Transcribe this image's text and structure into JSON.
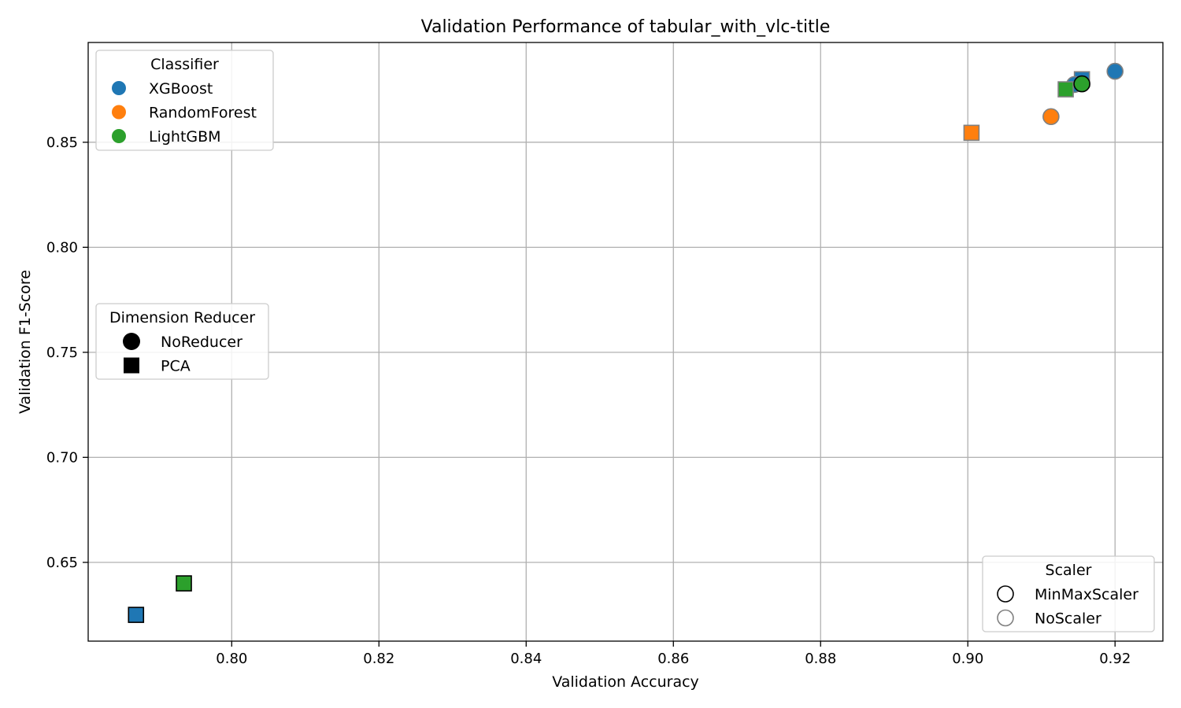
{
  "chart_data": {
    "type": "scatter",
    "title": "Validation Performance of tabular_with_vlc-title",
    "xlabel": "Validation Accuracy",
    "ylabel": "Validation F1-Score",
    "xlim": [
      0.7805,
      0.9265
    ],
    "ylim": [
      0.6125,
      0.8975
    ],
    "xticks": [
      0.8,
      0.82,
      0.84,
      0.86,
      0.88,
      0.9,
      0.92
    ],
    "yticks": [
      0.65,
      0.7,
      0.75,
      0.8,
      0.85
    ],
    "xtick_labels": [
      "0.80",
      "0.82",
      "0.84",
      "0.86",
      "0.88",
      "0.90",
      "0.92"
    ],
    "ytick_labels": [
      "0.65",
      "0.70",
      "0.75",
      "0.80",
      "0.85"
    ],
    "grid": true,
    "colors": {
      "XGBoost": "#1f77b4",
      "RandomForest": "#ff7f0e",
      "LightGBM": "#2ca02c"
    },
    "scaler_edge_colors": {
      "MinMaxScaler": "#000000",
      "NoScaler": "#808080"
    },
    "points": [
      {
        "classifier": "XGBoost",
        "reducer": "PCA",
        "scaler": "MinMaxScaler",
        "x": 0.787,
        "y": 0.625
      },
      {
        "classifier": "LightGBM",
        "reducer": "PCA",
        "scaler": "MinMaxScaler",
        "x": 0.7935,
        "y": 0.64
      },
      {
        "classifier": "RandomForest",
        "reducer": "PCA",
        "scaler": "NoScaler",
        "x": 0.9005,
        "y": 0.8545
      },
      {
        "classifier": "RandomForest",
        "reducer": "NoReducer",
        "scaler": "NoScaler",
        "x": 0.9113,
        "y": 0.8622
      },
      {
        "classifier": "XGBoost",
        "reducer": "PCA",
        "scaler": "NoScaler",
        "x": 0.9155,
        "y": 0.88
      },
      {
        "classifier": "XGBoost",
        "reducer": "NoReducer",
        "scaler": "NoScaler",
        "x": 0.92,
        "y": 0.8838
      },
      {
        "classifier": "XGBoost",
        "reducer": "NoReducer",
        "scaler": "NoScaler",
        "x": 0.9145,
        "y": 0.8775
      },
      {
        "classifier": "LightGBM",
        "reducer": "PCA",
        "scaler": "NoScaler",
        "x": 0.9133,
        "y": 0.8752
      },
      {
        "classifier": "LightGBM",
        "reducer": "NoReducer",
        "scaler": "MinMaxScaler",
        "x": 0.9155,
        "y": 0.8778
      }
    ],
    "legends": [
      {
        "title": "Classifier",
        "position": "upper-left",
        "entries": [
          {
            "label": "XGBoost",
            "marker": "circle",
            "fill": "#1f77b4",
            "stroke": "none"
          },
          {
            "label": "RandomForest",
            "marker": "circle",
            "fill": "#ff7f0e",
            "stroke": "none"
          },
          {
            "label": "LightGBM",
            "marker": "circle",
            "fill": "#2ca02c",
            "stroke": "none"
          }
        ]
      },
      {
        "title": "Dimension Reducer",
        "position": "center-left",
        "entries": [
          {
            "label": "NoReducer",
            "marker": "circle",
            "fill": "#000000",
            "stroke": "none"
          },
          {
            "label": "PCA",
            "marker": "square",
            "fill": "#000000",
            "stroke": "none"
          }
        ]
      },
      {
        "title": "Scaler",
        "position": "lower-right",
        "entries": [
          {
            "label": "MinMaxScaler",
            "marker": "circle",
            "fill": "none",
            "stroke": "#000000"
          },
          {
            "label": "NoScaler",
            "marker": "circle",
            "fill": "none",
            "stroke": "#808080"
          }
        ]
      }
    ]
  }
}
